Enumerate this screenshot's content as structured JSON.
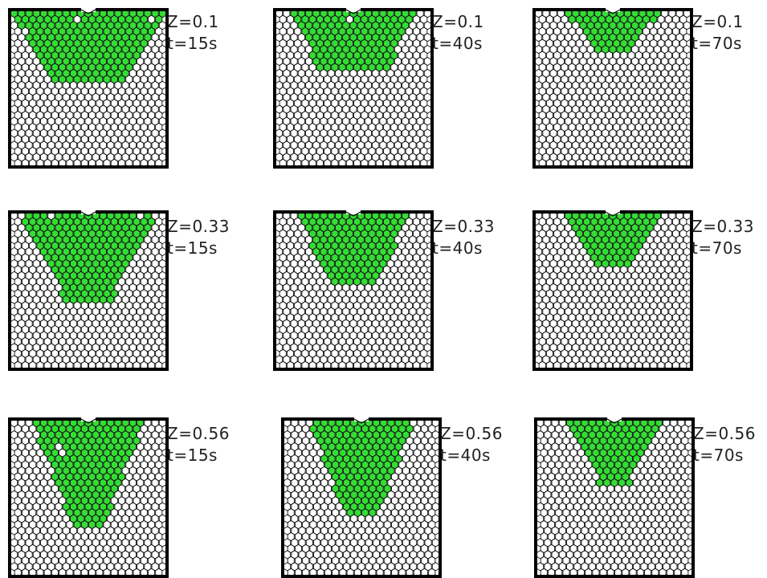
{
  "colors": {
    "filled": "#33dd33",
    "empty": "#ffffff",
    "cell_stroke": "#111111",
    "frame": "#000000"
  },
  "panels": [
    {
      "z": "Z=0.1",
      "t": "t=15s",
      "fill": {
        "shape": "cap",
        "depth": 0.48,
        "top_halfwidth": 0.98,
        "bottom_halfwidth": 0.5,
        "holes": [
          [
            1,
            8
          ],
          [
            1,
            18
          ],
          [
            3,
            1
          ],
          [
            4,
            1
          ]
        ]
      }
    },
    {
      "z": "Z=0.1",
      "t": "t=40s",
      "fill": {
        "shape": "cap",
        "depth": 0.4,
        "top_halfwidth": 0.8,
        "bottom_halfwidth": 0.45,
        "holes": [
          [
            1,
            9
          ]
        ]
      }
    },
    {
      "z": "Z=0.1",
      "t": "t=70s",
      "fill": {
        "shape": "cap",
        "depth": 0.27,
        "top_halfwidth": 0.6,
        "bottom_halfwidth": 0.2,
        "holes": []
      }
    },
    {
      "z": "Z=0.33",
      "t": "t=15s",
      "fill": {
        "shape": "cone",
        "depth": 0.58,
        "top_halfwidth": 0.85,
        "bottom_halfwidth": 0.3,
        "holes": [
          [
            0,
            5
          ],
          [
            0,
            17
          ]
        ]
      }
    },
    {
      "z": "Z=0.33",
      "t": "t=40s",
      "fill": {
        "shape": "cone",
        "depth": 0.46,
        "top_halfwidth": 0.7,
        "bottom_halfwidth": 0.32,
        "holes": []
      }
    },
    {
      "z": "Z=0.33",
      "t": "t=70s",
      "fill": {
        "shape": "cone",
        "depth": 0.33,
        "top_halfwidth": 0.58,
        "bottom_halfwidth": 0.2,
        "holes": []
      }
    },
    {
      "z": "Z=0.56",
      "t": "t=15s",
      "fill": {
        "shape": "cone",
        "depth": 0.7,
        "top_halfwidth": 0.72,
        "bottom_halfwidth": 0.2,
        "holes": [
          [
            4,
            6
          ],
          [
            5,
            6
          ]
        ]
      }
    },
    {
      "z": "Z=0.56",
      "t": "t=40s",
      "fill": {
        "shape": "cone",
        "depth": 0.62,
        "top_halfwidth": 0.66,
        "bottom_halfwidth": 0.22,
        "holes": []
      }
    },
    {
      "z": "Z=0.56",
      "t": "t=70s",
      "fill": {
        "shape": "cone",
        "depth": 0.42,
        "top_halfwidth": 0.58,
        "bottom_halfwidth": 0.2,
        "holes": []
      }
    }
  ]
}
